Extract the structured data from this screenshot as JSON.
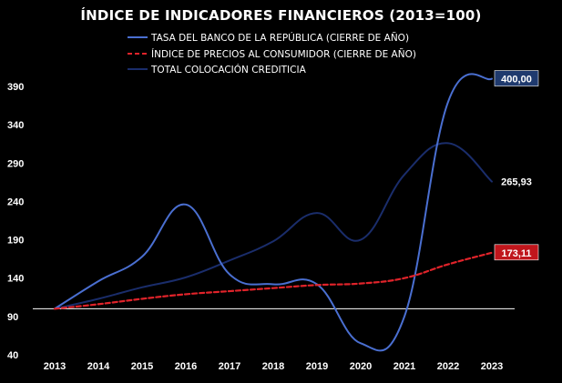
{
  "chart_data": {
    "type": "line",
    "title": "ÍNDICE DE INDICADORES FINANCIEROS (2013=100)",
    "xlabel": "",
    "ylabel": "",
    "categories": [
      "2013",
      "2014",
      "2015",
      "2016",
      "2017",
      "2018",
      "2019",
      "2020",
      "2021",
      "2022",
      "2023"
    ],
    "yticks": [
      40,
      90,
      140,
      190,
      240,
      290,
      340,
      390
    ],
    "ylim": [
      40,
      400
    ],
    "baseline": 100,
    "legend_position": "top",
    "grid": false,
    "series": [
      {
        "name": "TASA DEL BANCO DE LA REPÚBLICA (CIERRE DE AÑO)",
        "color": "#4a6fd1",
        "style": "solid",
        "values": [
          100,
          136,
          168,
          236,
          145,
          132,
          132,
          55,
          90,
          370,
          400.0
        ],
        "end_label": "400,00",
        "end_label_bg": "#1f3a6e"
      },
      {
        "name": "ÍNDICE DE PRECIOS AL CONSUMIDOR (CIERRE DE AÑO)",
        "color": "#e0232a",
        "style": "dashed",
        "values": [
          100,
          106,
          113,
          119,
          123,
          127,
          131,
          133,
          140,
          158,
          173.11
        ],
        "end_label": "173,11",
        "end_label_bg": "#c0161c"
      },
      {
        "name": "TOTAL COLOCACIÓN CREDITICIA",
        "color": "#1a2d6b",
        "style": "solid",
        "values": [
          100,
          113,
          128,
          141,
          163,
          188,
          225,
          190,
          275,
          316,
          265.93
        ],
        "end_label": "265,93",
        "end_label_bg": "#000000"
      }
    ]
  }
}
